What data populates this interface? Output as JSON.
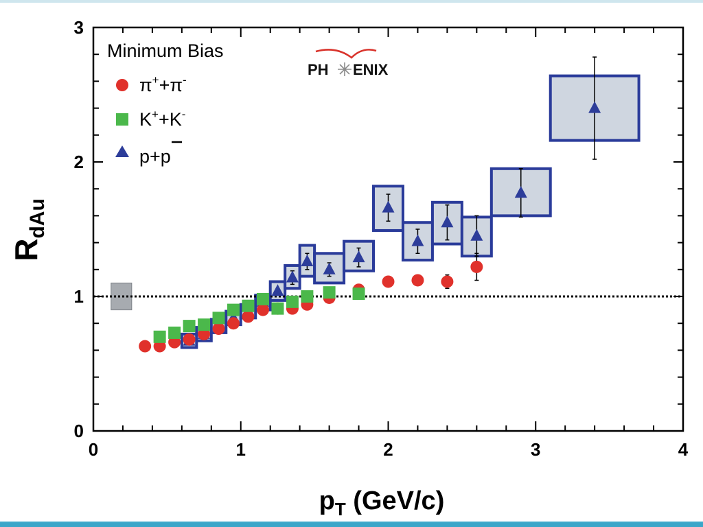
{
  "chart_data": {
    "type": "scatter",
    "logo_text": "PHENIX",
    "legend_title": "Minimum Bias",
    "xlabel": {
      "main": "p",
      "sub": "T",
      "rest": " (GeV/c)"
    },
    "ylabel": {
      "main": "R",
      "sub": "dAu"
    },
    "xlim": [
      0,
      4
    ],
    "ylim": [
      0,
      3
    ],
    "x_ticks": [
      "0",
      "1",
      "2",
      "3",
      "4"
    ],
    "y_ticks": [
      "0",
      "1",
      "2",
      "3"
    ],
    "reference_line": 1.0,
    "normalization_box": {
      "x": [
        0.12,
        0.26
      ],
      "y": [
        0.9,
        1.1
      ]
    },
    "legend": [
      {
        "label_html": "π⁺+π⁻",
        "base": "π",
        "sup1": "+",
        "mid": "+π",
        "sup2": "-",
        "marker": "circle",
        "color": "#e0312b"
      },
      {
        "label_html": "K⁺+K⁻",
        "base": "K",
        "sup1": "+",
        "mid": "+K",
        "sup2": "-",
        "marker": "square",
        "color": "#4bb84b"
      },
      {
        "label_html": "p+p̄",
        "base": "p+",
        "overline": "p",
        "marker": "triangle",
        "color": "#2d3d9a"
      }
    ],
    "series": [
      {
        "name": "π⁺+π⁻",
        "marker": "circle",
        "color": "#e0312b",
        "x": [
          0.35,
          0.45,
          0.55,
          0.65,
          0.75,
          0.85,
          0.95,
          1.05,
          1.15,
          1.25,
          1.35,
          1.45,
          1.6,
          1.8,
          2.0,
          2.2,
          2.4,
          2.6
        ],
        "y": [
          0.63,
          0.63,
          0.66,
          0.68,
          0.72,
          0.76,
          0.8,
          0.85,
          0.9,
          0.91,
          0.91,
          0.94,
          0.99,
          1.05,
          1.11,
          1.12,
          1.11,
          1.22
        ],
        "err": [
          0,
          0,
          0,
          0,
          0,
          0,
          0,
          0,
          0,
          0,
          0,
          0,
          0,
          0,
          0,
          0,
          0.05,
          0.1
        ]
      },
      {
        "name": "K⁺+K⁻",
        "marker": "square",
        "color": "#4bb84b",
        "x": [
          0.45,
          0.55,
          0.65,
          0.75,
          0.85,
          0.95,
          1.05,
          1.15,
          1.25,
          1.35,
          1.45,
          1.6,
          1.8
        ],
        "y": [
          0.7,
          0.73,
          0.78,
          0.79,
          0.84,
          0.9,
          0.93,
          0.98,
          0.91,
          0.96,
          1.0,
          1.03,
          1.02
        ],
        "err": [
          0,
          0,
          0,
          0,
          0,
          0,
          0,
          0,
          0,
          0,
          0,
          0,
          0
        ]
      },
      {
        "name": "p+p̄",
        "marker": "triangle",
        "color": "#2d3d9a",
        "x": [
          0.65,
          0.75,
          0.85,
          0.95,
          1.05,
          1.15,
          1.25,
          1.35,
          1.45,
          1.6,
          1.8,
          2.0,
          2.2,
          2.4,
          2.6,
          2.9,
          3.4
        ],
        "y": [
          0.67,
          0.72,
          0.78,
          0.84,
          0.89,
          0.96,
          1.04,
          1.14,
          1.26,
          1.2,
          1.29,
          1.66,
          1.41,
          1.55,
          1.45,
          1.77,
          2.4
        ],
        "err": [
          0,
          0,
          0,
          0,
          0,
          0,
          0,
          0.05,
          0.06,
          0.05,
          0.07,
          0.1,
          0.09,
          0.13,
          0.15,
          0.18,
          0.38
        ],
        "sys_boxes": [
          [
            0.6,
            0.7,
            0.62,
            0.72
          ],
          [
            0.7,
            0.8,
            0.67,
            0.77
          ],
          [
            0.8,
            0.9,
            0.73,
            0.83
          ],
          [
            0.9,
            1.0,
            0.79,
            0.89
          ],
          [
            1.0,
            1.1,
            0.84,
            0.94
          ],
          [
            1.1,
            1.2,
            0.9,
            1.01
          ],
          [
            1.2,
            1.3,
            0.97,
            1.11
          ],
          [
            1.3,
            1.4,
            1.06,
            1.23
          ],
          [
            1.4,
            1.5,
            1.15,
            1.38
          ],
          [
            1.5,
            1.7,
            1.1,
            1.32
          ],
          [
            1.7,
            1.9,
            1.19,
            1.41
          ],
          [
            1.9,
            2.1,
            1.49,
            1.82
          ],
          [
            2.1,
            2.3,
            1.27,
            1.55
          ],
          [
            2.3,
            2.5,
            1.39,
            1.7
          ],
          [
            2.5,
            2.7,
            1.3,
            1.59
          ],
          [
            2.7,
            3.1,
            1.6,
            1.95
          ],
          [
            3.1,
            3.7,
            2.16,
            2.64
          ]
        ]
      }
    ]
  }
}
